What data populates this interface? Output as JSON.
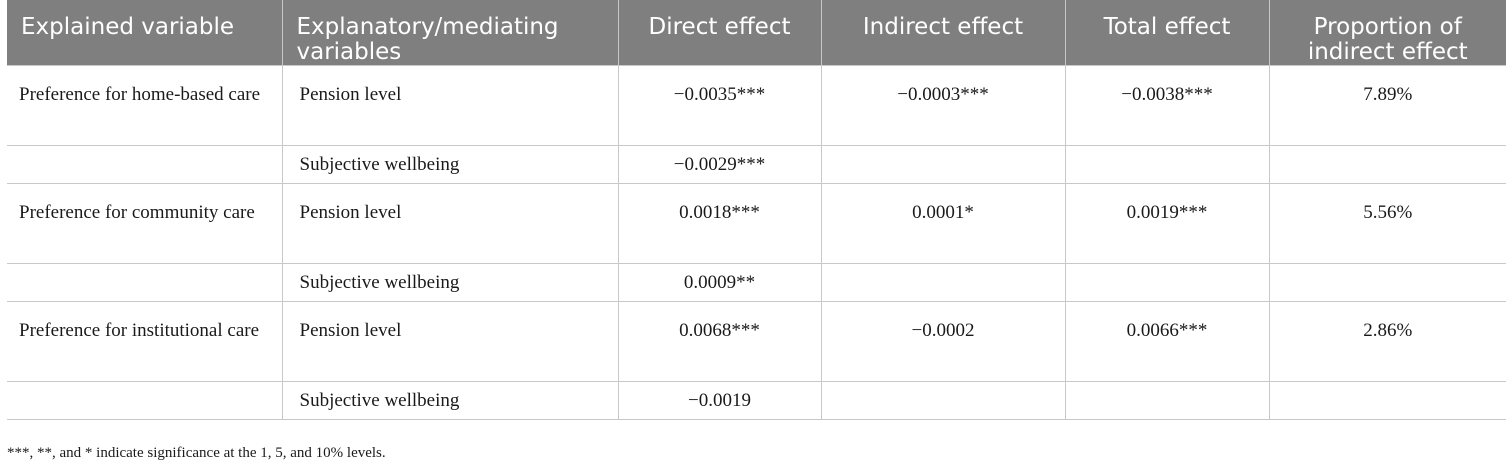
{
  "table": {
    "headers": [
      "Explained variable",
      "Explanatory/mediating variables",
      "Direct effect",
      "Indirect effect",
      "Total effect",
      "Proportion of indirect effect"
    ],
    "rows": [
      {
        "explained": "Preference for home-based care",
        "variable": "Pension level",
        "direct": "−0.0035***",
        "indirect": "−0.0003***",
        "total": "−0.0038***",
        "proportion": "7.89%"
      },
      {
        "explained": "",
        "variable": "Subjective wellbeing",
        "direct": "−0.0029***",
        "indirect": "",
        "total": "",
        "proportion": ""
      },
      {
        "explained": "Preference for community care",
        "variable": "Pension level",
        "direct": "0.0018***",
        "indirect": "0.0001*",
        "total": "0.0019***",
        "proportion": "5.56%"
      },
      {
        "explained": "",
        "variable": "Subjective wellbeing",
        "direct": "0.0009**",
        "indirect": "",
        "total": "",
        "proportion": ""
      },
      {
        "explained": "Preference for institutional care",
        "variable": "Pension level",
        "direct": "0.0068***",
        "indirect": "−0.0002",
        "total": "0.0066***",
        "proportion": "2.86%"
      },
      {
        "explained": "",
        "variable": "Subjective wellbeing",
        "direct": "−0.0019",
        "indirect": "",
        "total": "",
        "proportion": ""
      }
    ]
  },
  "footnote": "***, **, and * indicate significance at the 1, 5, and 10% levels."
}
